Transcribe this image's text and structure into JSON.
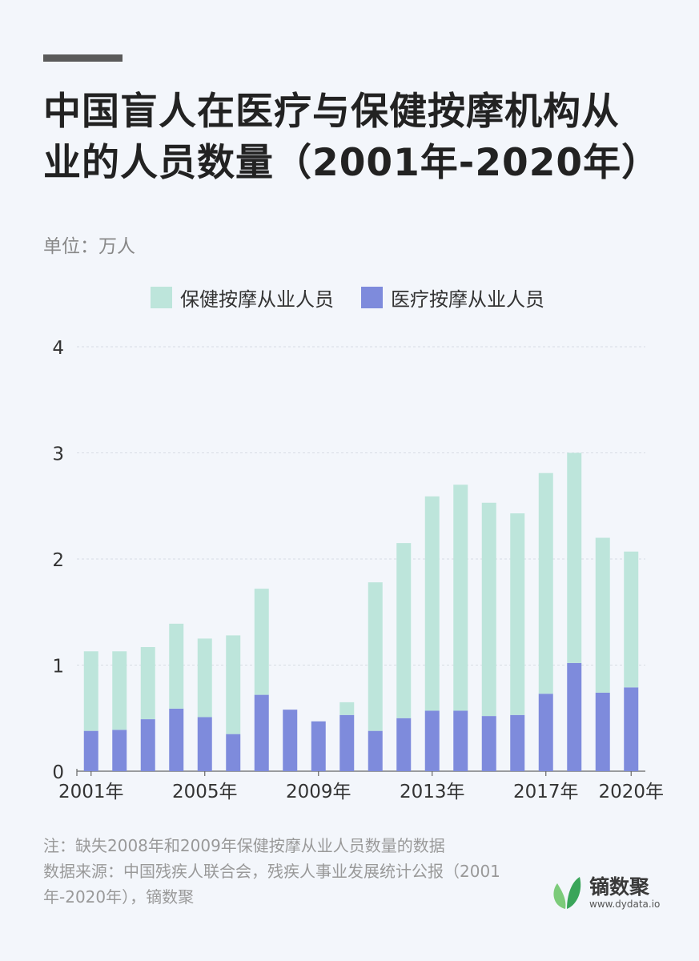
{
  "title": "中国盲人在医疗与保健按摩机构从业的人员数量（2001年-2020年）",
  "unit": "单位：万人",
  "notes": [
    "注：缺失2008年和2009年保健按摩从业人员数量的数据",
    "数据来源：中国残疾人联合会，残疾人事业发展统计公报（2001年-2020年），镝数聚"
  ],
  "brand": {
    "name": "镝数聚",
    "site": "www.dydata.io"
  },
  "colors": {
    "health_massage": "#bde5db",
    "medical_massage": "#7e8bdc",
    "grid": "#d7dce4",
    "axis": "#666666",
    "logo_green": "#3aa55a",
    "logo_light": "#7ccb7a"
  },
  "chart_data": {
    "type": "bar",
    "stacked": true,
    "categories": [
      "2001",
      "2002",
      "2003",
      "2004",
      "2005",
      "2006",
      "2007",
      "2008",
      "2009",
      "2010",
      "2011",
      "2012",
      "2013",
      "2014",
      "2015",
      "2016",
      "2017",
      "2018",
      "2019",
      "2020"
    ],
    "tick_labels": {
      "2001": "2001年",
      "2005": "2005年",
      "2009": "2009年",
      "2013": "2013年",
      "2017": "2017年",
      "2020": "2020年"
    },
    "series": [
      {
        "name": "医疗按摩从业人员",
        "values": [
          0.38,
          0.39,
          0.49,
          0.59,
          0.51,
          0.35,
          0.72,
          0.58,
          0.47,
          0.53,
          0.38,
          0.5,
          0.57,
          0.57,
          0.52,
          0.53,
          0.73,
          1.02,
          0.74,
          0.79
        ]
      },
      {
        "name": "保健按摩从业人员",
        "values": [
          0.75,
          0.74,
          0.68,
          0.8,
          0.74,
          0.93,
          1.0,
          null,
          null,
          0.12,
          1.4,
          1.65,
          2.02,
          2.13,
          2.01,
          1.9,
          2.08,
          1.98,
          1.46,
          1.28
        ]
      }
    ],
    "ylim": [
      0,
      4
    ],
    "yticks": [
      "0",
      "1",
      "2",
      "3",
      "4"
    ],
    "grid": true,
    "legend_position": "top"
  }
}
